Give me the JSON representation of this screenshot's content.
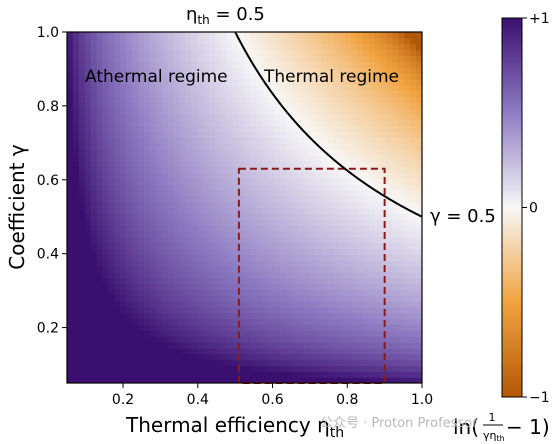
{
  "chart_data": {
    "type": "heatmap",
    "x": {
      "label_main": "Thermal efficiency η",
      "label_sub": "th",
      "range": [
        0.05,
        1.0
      ],
      "ticks": [
        "0.2",
        "0.4",
        "0.6",
        "0.8",
        "1.0"
      ],
      "tick_values": [
        0.2,
        0.4,
        0.6,
        0.8,
        1.0
      ]
    },
    "y": {
      "label": "Coefficient γ",
      "range": [
        0.05,
        1.0
      ],
      "ticks": [
        "0.2",
        "0.4",
        "0.6",
        "0.8",
        "1.0"
      ],
      "tick_values": [
        0.2,
        0.4,
        0.6,
        0.8,
        1.0
      ]
    },
    "field": "ln(1/(γ·η_th) − 1)",
    "colorbar": {
      "label_prefix": "ln(",
      "label_num": "1",
      "label_den_main": "γη",
      "label_den_sub": "th",
      "label_suffix": "− 1)",
      "ticks": [
        "+1",
        "0",
        "−1"
      ],
      "tick_values": [
        1,
        0,
        -1
      ],
      "range": [
        -1,
        1
      ],
      "colors": {
        "top": "#3b0f70",
        "mid": "#f7f7f7",
        "bottom": "#b35806"
      }
    },
    "boundary_curve": {
      "equation": "γ · η_th = 0.5",
      "label_top_main": "η",
      "label_top_sub": "th",
      "label_top_value": " = 0.5",
      "label_right": "γ = 0.5"
    },
    "regions": {
      "left": "Athermal regime",
      "right": "Thermal regime"
    },
    "dashed_box": {
      "x_range": [
        0.51,
        0.9
      ],
      "y_range": [
        0.05,
        0.63
      ],
      "color": "#8b1a1a"
    },
    "grid": false
  },
  "watermark": "公众号 · Proton Professor"
}
